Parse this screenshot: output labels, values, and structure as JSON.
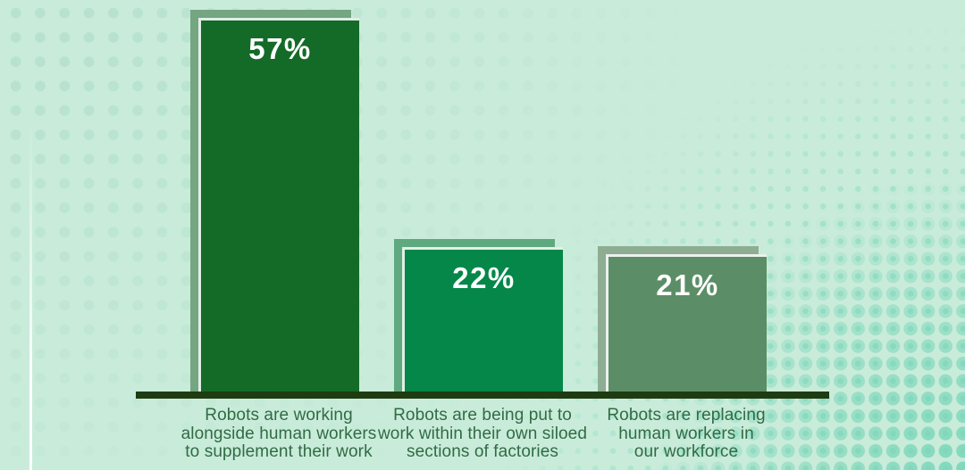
{
  "chart_data": {
    "type": "bar",
    "categories": [
      "Robots are working alongside human workers to supplement their work",
      "Robots are being put to work within their own siloed sections of factories",
      "Robots are replacing human workers in our workforce"
    ],
    "values": [
      57,
      22,
      21
    ],
    "value_labels": [
      "57%",
      "22%",
      "21%"
    ],
    "unit": "%",
    "title": "",
    "xlabel": "",
    "ylabel": "",
    "ylim": [
      0,
      60
    ],
    "grid": false,
    "legend": false,
    "value_label_position": "inside-top",
    "bar_colors": [
      "#146B28",
      "#048749",
      "#5B8E66"
    ]
  },
  "bars": [
    {
      "value_label": "57%",
      "label_lines": [
        "Robots are working",
        "alongside human workers",
        "to supplement their work"
      ],
      "fill": "#146B28",
      "back": "#73A681"
    },
    {
      "value_label": "22%",
      "label_lines": [
        "Robots are being put to",
        "work within their own siloed",
        "sections of factories"
      ],
      "fill": "#048749",
      "back": "#5FA97E"
    },
    {
      "value_label": "21%",
      "label_lines": [
        "Robots are replacing",
        "human workers in",
        "our workforce"
      ],
      "fill": "#5B8E66",
      "back": "#8EAD93"
    }
  ],
  "colors": {
    "background": "#C9ECDA",
    "baseline": "#1E3B12",
    "dots_left": "#B7E2CF",
    "dots_right": "#7FD7BB",
    "label_text": "#316B44",
    "value_text": "#FFFFFF",
    "bar_inner_edge": "#FFFFFF"
  }
}
